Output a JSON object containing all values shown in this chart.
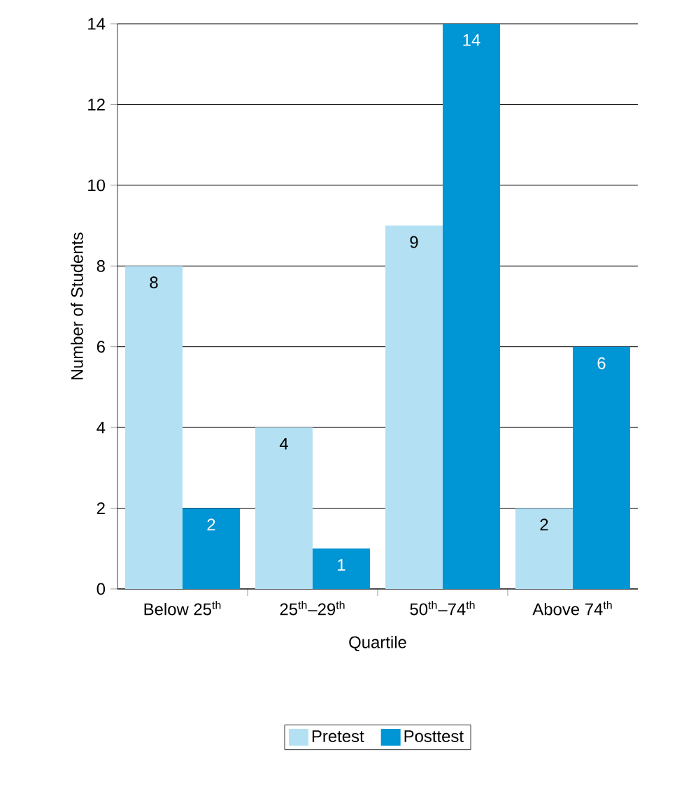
{
  "chart_data": {
    "type": "bar",
    "xlabel": "Quartile",
    "ylabel": "Number of Students",
    "categories": [
      "Below 25$^{th}$",
      "25$^{th}$–29$^{th}$",
      "50$^{th}$–74$^{th}$",
      "Above 74$^{th}$"
    ],
    "series": [
      {
        "name": "Pretest",
        "color": "#b3e1f3",
        "values": [
          8,
          4,
          9,
          2
        ]
      },
      {
        "name": "Posttest",
        "color": "#0095d5",
        "values": [
          2,
          1,
          14,
          6
        ]
      }
    ],
    "ylim": [
      0,
      14
    ],
    "yticks": [
      0,
      2,
      4,
      6,
      8,
      10,
      12,
      14
    ],
    "grid": "y",
    "legend": "bottom",
    "data_labels": true
  }
}
